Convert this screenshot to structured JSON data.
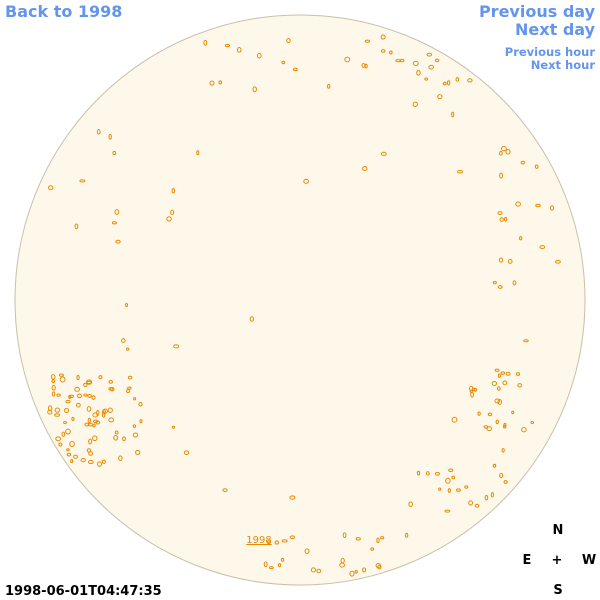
{
  "nav": {
    "back": "Back to 1998",
    "previous_day": "Previous day",
    "next_day": "Next day",
    "previous_hour": "Previous hour",
    "next_hour": "Next hour"
  },
  "disk_label": "1998",
  "timestamp": "1998-06-01T04:47:35",
  "compass": {
    "north": "N",
    "east": "E",
    "center": "+",
    "west": "W",
    "south": "S"
  }
}
